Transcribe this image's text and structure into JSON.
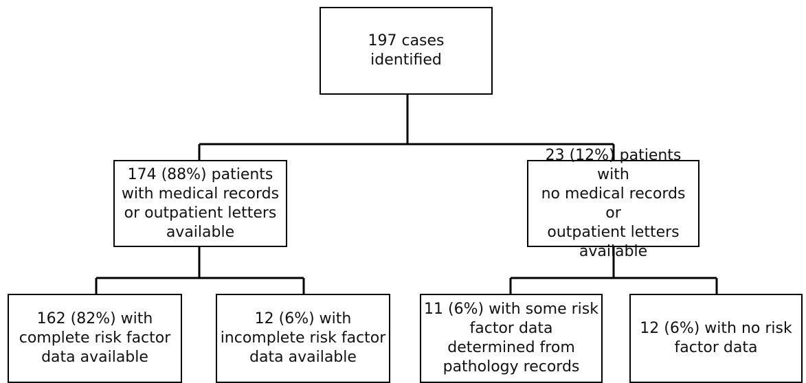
{
  "flowchart": {
    "root": {
      "lines": [
        "197 cases",
        "identified"
      ]
    },
    "left_branch": {
      "lines": [
        "174 (88%) patients",
        "with medical records",
        "or outpatient letters",
        "available"
      ]
    },
    "right_branch": {
      "lines": [
        "23 (12%) patients with",
        "no medical records or",
        "outpatient letters",
        "available"
      ]
    },
    "left_left_leaf": {
      "lines": [
        "162 (82%) with",
        "complete risk factor",
        "data available"
      ]
    },
    "left_right_leaf": {
      "lines": [
        "12 (6%) with",
        "incomplete risk factor",
        "data available"
      ]
    },
    "right_left_leaf": {
      "lines": [
        "11 (6%) with some risk",
        "factor data",
        "determined from",
        "pathology records"
      ]
    },
    "right_right_leaf": {
      "lines": [
        "12 (6%) with no risk",
        "factor data"
      ]
    },
    "line_color": "#000000"
  }
}
